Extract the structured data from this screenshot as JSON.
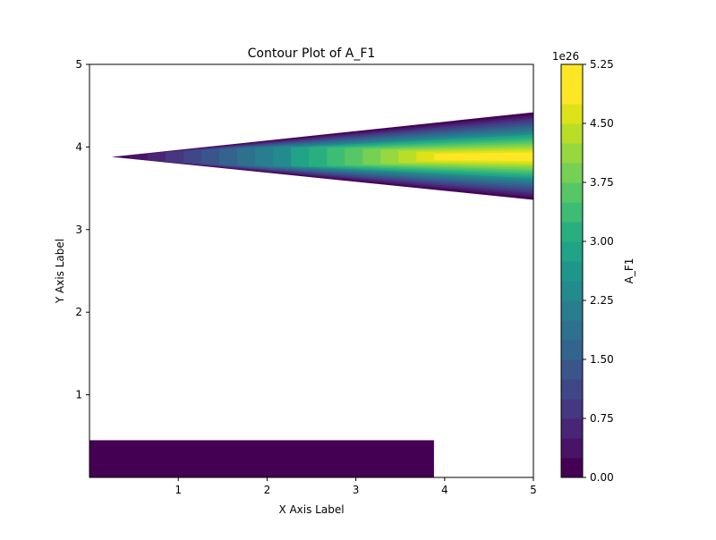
{
  "chart_data": {
    "type": "heatmap",
    "subtype": "filled-contour",
    "title": "Contour Plot of A_F1",
    "xlabel": "X Axis Label",
    "ylabel": "Y Axis Label",
    "xlim": [
      0,
      5
    ],
    "ylim": [
      0,
      5
    ],
    "x_ticks": [
      "1",
      "2",
      "3",
      "4",
      "5"
    ],
    "y_ticks": [
      "1",
      "2",
      "3",
      "4",
      "5"
    ],
    "grid": false,
    "colormap": "viridis",
    "colorbar": {
      "label": "A_F1",
      "scale_label": "1e26",
      "range": [
        0.0,
        5.25
      ],
      "ticks": [
        "0.00",
        "0.75",
        "1.50",
        "2.25",
        "3.00",
        "3.75",
        "4.50",
        "5.25"
      ],
      "levels": 21,
      "colors": [
        "#440154",
        "#481467",
        "#482576",
        "#453781",
        "#3f4788",
        "#39558c",
        "#32648e",
        "#2d718e",
        "#287d8e",
        "#238a8d",
        "#1f968b",
        "#20a386",
        "#29af7f",
        "#3dbc74",
        "#56c667",
        "#75d054",
        "#95d840",
        "#bade28",
        "#dde318",
        "#fde725",
        "#fde725"
      ]
    },
    "regions": [
      {
        "name": "wedge",
        "apex": [
          0.25,
          3.88
        ],
        "end_x": 5.0,
        "end_top": 4.42,
        "end_bottom": 3.36,
        "peak_value": 5.25,
        "peak_y": 3.88
      },
      {
        "name": "strip",
        "x_range": [
          0.0,
          3.88
        ],
        "y_range": [
          0.0,
          0.45
        ],
        "value": 0.1
      }
    ]
  }
}
